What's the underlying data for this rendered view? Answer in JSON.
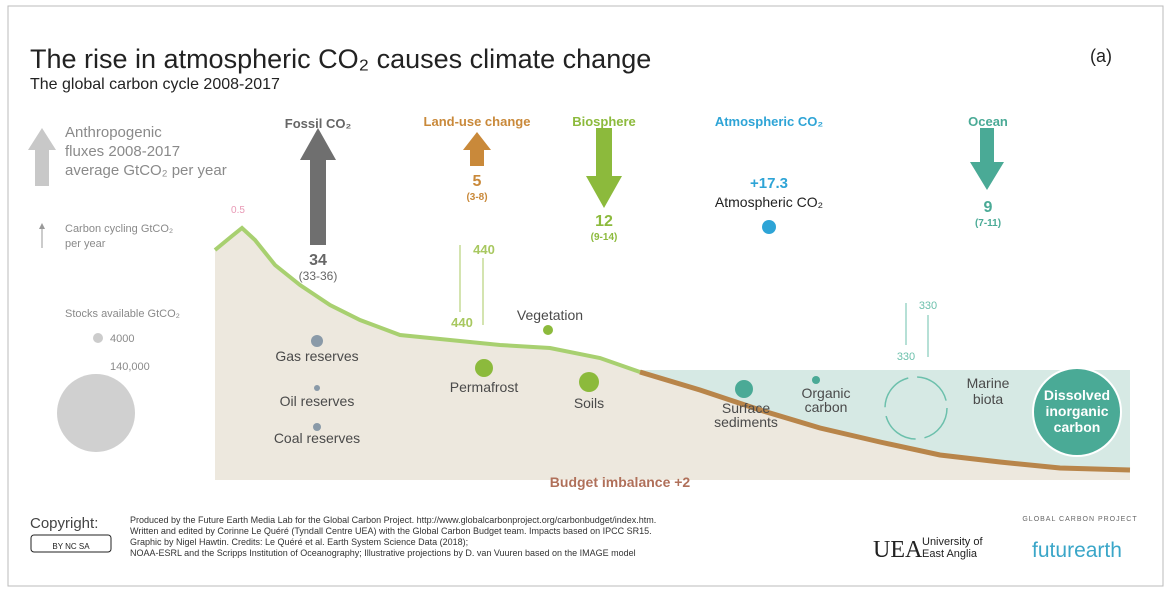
{
  "header": {
    "title": "The rise in atmospheric  CO₂ causes climate change",
    "subtitle": "The global carbon cycle 2008-2017",
    "panel": "(a)"
  },
  "legend": {
    "anthropogenic": [
      "Anthropogenic",
      "fluxes 2008-2017",
      "average GtCO₂ per year"
    ],
    "cycling": [
      "Carbon cycling GtCO₂",
      "per year"
    ],
    "stocks": "Stocks available GtCO₂",
    "stock_small": "4000",
    "stock_large": "140,000"
  },
  "fluxes": {
    "fossil": {
      "label": "Fossil CO₂",
      "value": "34",
      "range": "(33-36)"
    },
    "land_use": {
      "label": "Land-use change",
      "value": "5",
      "range": "(3-8)"
    },
    "biosphere": {
      "label": "Biosphere",
      "value": "12",
      "range": "(9-14)"
    },
    "atmosphere": {
      "label": "Atmospheric CO₂",
      "value": "+17.3",
      "sublabel": "Atmospheric CO₂"
    },
    "ocean": {
      "label": "Ocean",
      "value": "9",
      "range": "(7-11)"
    }
  },
  "cycling": {
    "volcanic": "0.5",
    "land_down": "440",
    "land_up": "440",
    "ocean_up": "330",
    "ocean_down": "330"
  },
  "stocks": {
    "gas": "Gas reserves",
    "oil": "Oil reserves",
    "coal": "Coal reserves",
    "vegetation": "Vegetation",
    "permafrost": "Permafrost",
    "soils": "Soils",
    "sediments": [
      "Surface",
      "sediments"
    ],
    "organic": [
      "Organic",
      "carbon"
    ],
    "biota": [
      "Marine",
      "biota"
    ],
    "dissolved": [
      "Dissolved",
      "inorganic",
      "carbon"
    ]
  },
  "budget": "Budget imbalance +2",
  "footer": {
    "copyright": "Copyright:",
    "license": "BY NC SA",
    "credits": [
      "Produced by the Future Earth Media Lab for the Global Carbon Project. http://www.globalcarbonproject.org/carbonbudget/index.htm.",
      "Written and edited by Corinne Le Quéré (Tyndall Centre UEA) with the Global Carbon Budget team. Impacts based on IPCC SR15.",
      "Graphic by Nigel Hawtin. Credits: Le Quéré et al. Earth System Science Data (2018);",
      "NOAA-ESRL and the Scripps Institution of Oceanography; Illustrative projections by D. van Vuuren based on the IMAGE model"
    ],
    "uea_mark": "UEA",
    "uea": [
      "University of",
      "East Anglia"
    ],
    "gcp": "GLOBAL CARBON PROJECT",
    "futurearth": "futurearth"
  }
}
